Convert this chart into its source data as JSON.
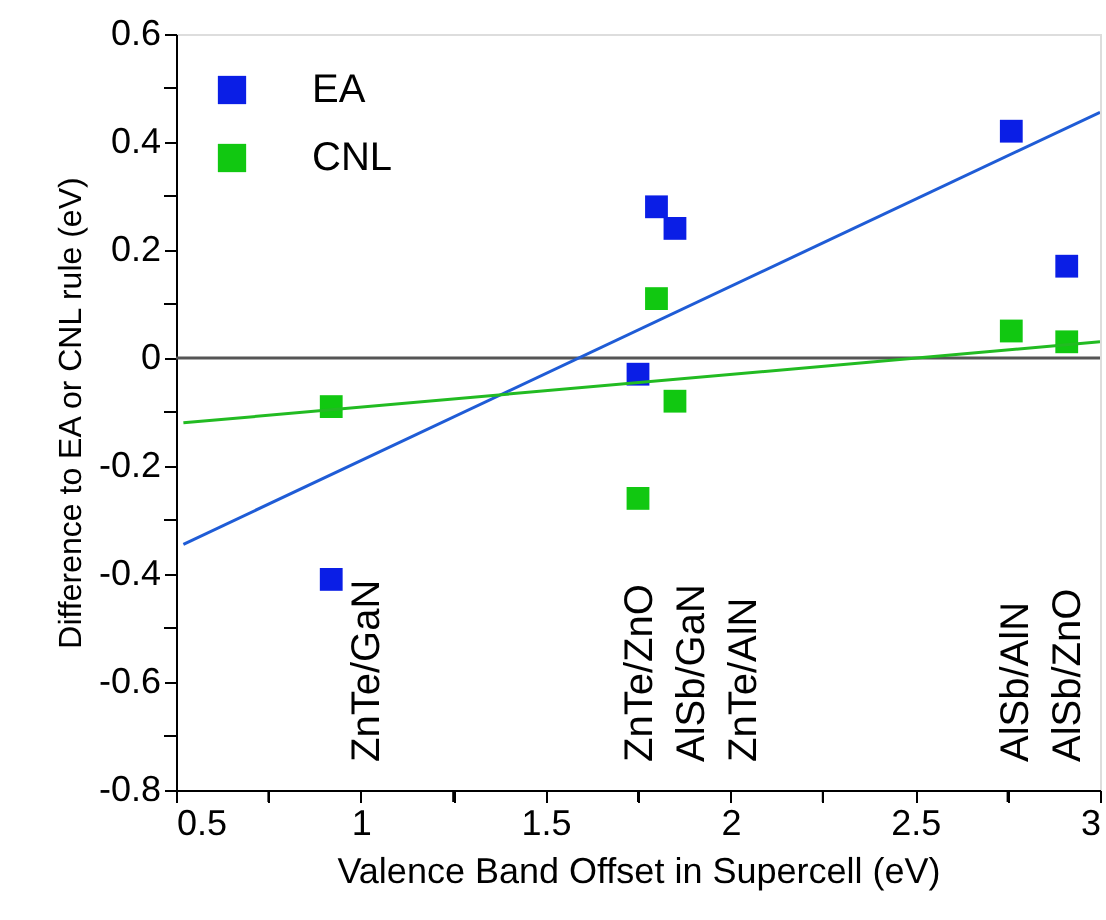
{
  "chart_data": {
    "type": "scatter",
    "xlabel": "Valence Band Offset in Supercell (eV)",
    "ylabel": "Difference to EA or CNL rule (eV)",
    "xlim": [
      0.5,
      3
    ],
    "ylim": [
      -0.8,
      0.6
    ],
    "xticks": [
      0.5,
      {
        "value": 0.75,
        "label": null
      },
      1,
      {
        "value": 1.25,
        "label": null
      },
      1.5,
      {
        "value": 1.75,
        "label": null
      },
      2,
      {
        "value": 2.25,
        "label": null
      },
      2.5,
      {
        "value": 2.75,
        "label": null
      },
      3
    ],
    "yticks": [
      -0.8,
      {
        "value": -0.7,
        "label": null
      },
      -0.6,
      {
        "value": -0.5,
        "label": null
      },
      -0.4,
      {
        "value": -0.3,
        "label": null
      },
      -0.2,
      {
        "value": -0.1,
        "label": null
      },
      0,
      {
        "value": 0.1,
        "label": null
      },
      0.2,
      {
        "value": 0.3,
        "label": null
      },
      0.4,
      {
        "value": 0.5,
        "label": null
      },
      0.6
    ],
    "legend": "top left",
    "series": [
      {
        "name": "EA",
        "marker": "square",
        "color": "#0a1ee6",
        "x": [
          0.92,
          1.75,
          1.8,
          1.85,
          2.76,
          2.91
        ],
        "values": [
          -0.41,
          -0.03,
          0.28,
          0.24,
          0.42,
          0.17
        ]
      },
      {
        "name": "CNL",
        "marker": "square",
        "color": "#11c811",
        "x": [
          0.92,
          1.75,
          1.8,
          1.85,
          2.76,
          2.91
        ],
        "values": [
          -0.09,
          -0.26,
          0.11,
          -0.08,
          0.05,
          0.03
        ]
      },
      {
        "type": "line",
        "color": "#1f5cd6",
        "x": [
          0.52,
          3
        ],
        "values": [
          -0.345,
          0.455
        ]
      },
      {
        "type": "line",
        "color": "#22bb22",
        "x": [
          0.52,
          3
        ],
        "values": [
          -0.12,
          0.03
        ]
      }
    ],
    "ref_lines": [
      {
        "axis": "y",
        "value": 0,
        "color": "#555555"
      }
    ],
    "annotations": [
      "ZnTe/GaN",
      "ZnTe/ZnO",
      "AlSb/GaN",
      "ZnTe/AlN",
      "AlSb/AlN",
      "AlSb/ZnO"
    ]
  }
}
